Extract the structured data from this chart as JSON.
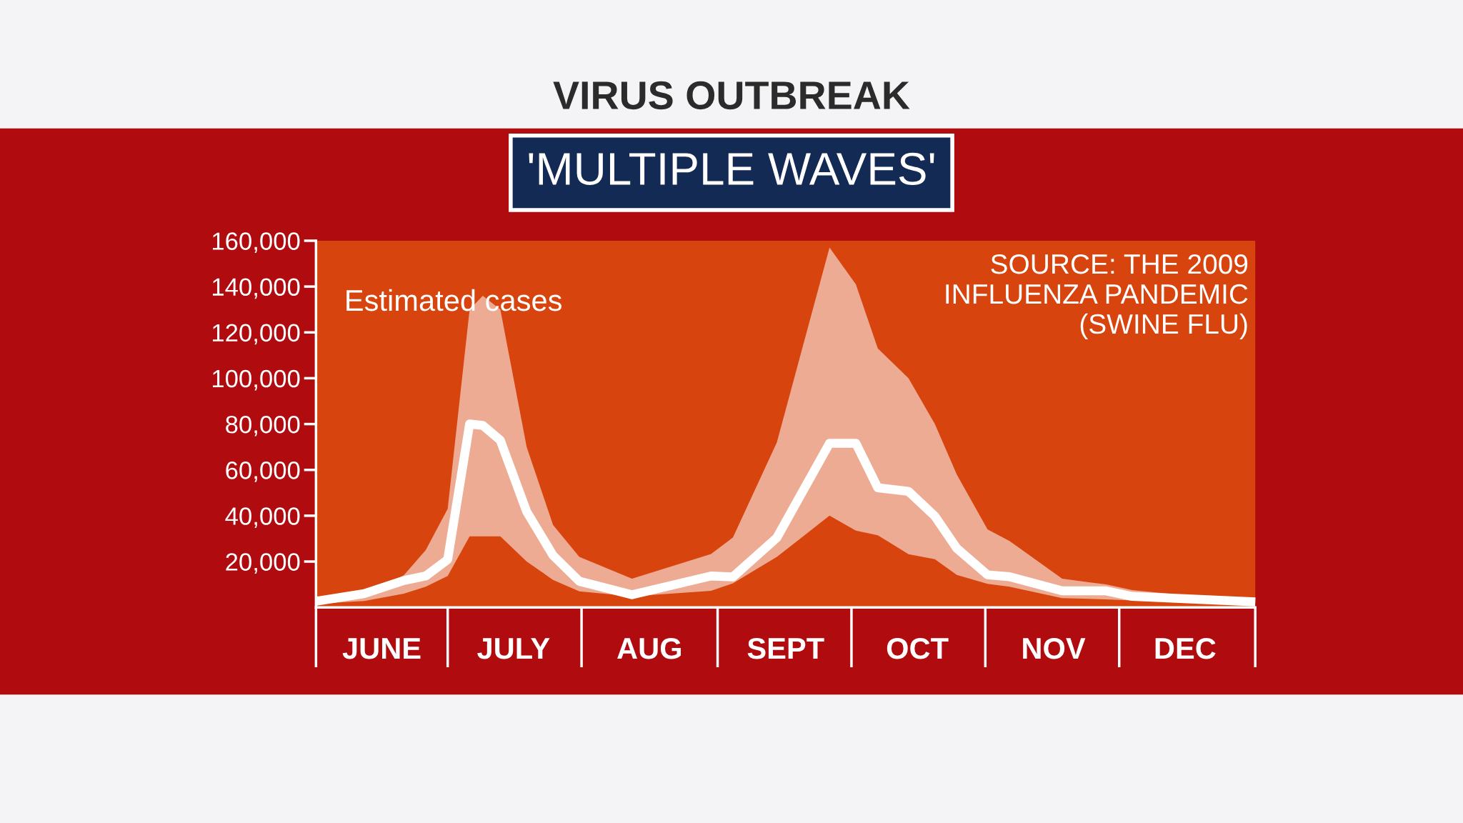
{
  "chart_data": {
    "type": "line",
    "title": "VIRUS OUTBREAK",
    "subtitle": "'MULTIPLE WAVES'",
    "annotations": [
      "Estimated cases",
      "SOURCE: THE 2009 INFLUENZA PANDEMIC (SWINE FLU)"
    ],
    "xlim": [
      "2009-06-01",
      "2010-01-01"
    ],
    "xticks": [
      {
        "value": "2009-06-16",
        "label": "JUNE"
      },
      {
        "value": "2009-07-16",
        "label": "JULY"
      },
      {
        "value": "2009-08-16",
        "label": "AUG"
      },
      {
        "value": "2009-09-16",
        "label": "SEPT"
      },
      {
        "value": "2009-10-16",
        "label": "OCT"
      },
      {
        "value": "2009-11-16",
        "label": "NOV"
      },
      {
        "value": "2009-12-16",
        "label": "DEC"
      }
    ],
    "ylim": [
      0,
      160000
    ],
    "yticks": [
      {
        "value": 20000,
        "label": "20,000"
      },
      {
        "value": 40000,
        "label": "40,000"
      },
      {
        "value": 60000,
        "label": "60,000"
      },
      {
        "value": 80000,
        "label": "80,000"
      },
      {
        "value": 100000,
        "label": "100,000"
      },
      {
        "value": 120000,
        "label": "120,000"
      },
      {
        "value": 140000,
        "label": "140,000"
      },
      {
        "value": 160000,
        "label": "160,000"
      }
    ],
    "grid": false,
    "legend": false,
    "marker": "none",
    "line_style": "solid",
    "series": [
      {
        "color": "#ffffff",
        "x": [
          "2009-06-02",
          "2009-06-12",
          "2009-06-21",
          "2009-06-26",
          "2009-07-01",
          "2009-07-06",
          "2009-07-09",
          "2009-07-13",
          "2009-07-19",
          "2009-07-25",
          "2009-07-31",
          "2009-08-12",
          "2009-08-30",
          "2009-09-04",
          "2009-09-14",
          "2009-09-26",
          "2009-10-02",
          "2009-10-07",
          "2009-10-14",
          "2009-10-20",
          "2009-10-25",
          "2009-11-01",
          "2009-11-06",
          "2009-11-18",
          "2009-11-28",
          "2009-12-04",
          "2009-12-31"
        ],
        "values": [
          3000,
          6000,
          11700,
          13700,
          20900,
          80000,
          79400,
          72900,
          41800,
          22700,
          11400,
          5500,
          13700,
          13300,
          30400,
          71600,
          71600,
          52200,
          50600,
          39800,
          25800,
          14200,
          13400,
          7200,
          7200,
          4800,
          2500
        ],
        "lower": [
          1700,
          2800,
          6000,
          9000,
          13700,
          31000,
          31000,
          31000,
          20000,
          12000,
          7000,
          4800,
          7200,
          10500,
          22000,
          40000,
          33500,
          31500,
          23200,
          21000,
          14200,
          10300,
          9000,
          4000,
          3500,
          3000,
          1000
        ],
        "upper": [
          3500,
          5000,
          14000,
          25000,
          43000,
          130000,
          136000,
          130000,
          70000,
          36000,
          22000,
          12500,
          23300,
          30500,
          72000,
          157000,
          141000,
          113000,
          100000,
          80000,
          58000,
          34000,
          29000,
          12500,
          10000,
          7500,
          2500
        ]
      }
    ]
  }
}
